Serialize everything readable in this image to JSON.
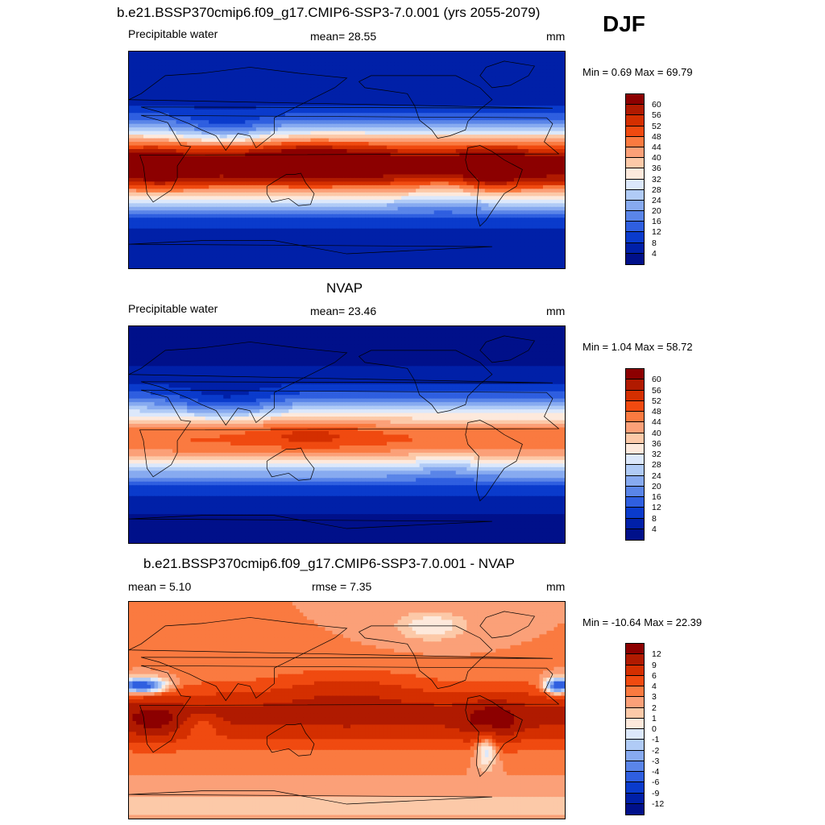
{
  "season": "DJF",
  "panels": [
    {
      "title": "b.e21.BSSP370cmip6.f09_g17.CMIP6-SSP3-7.0.001 (yrs 2055-2079)",
      "left_label": "Precipitable water",
      "center_label": "mean=  28.55",
      "units": "mm",
      "minmax": "Min =   0.69 Max =  69.79",
      "palette": "abs",
      "field": "model",
      "colorbar_labels": [
        "60",
        "56",
        "52",
        "48",
        "44",
        "40",
        "36",
        "32",
        "28",
        "24",
        "20",
        "16",
        "12",
        "8",
        "4"
      ]
    },
    {
      "title": "NVAP",
      "left_label": "Precipitable water",
      "center_label": "mean=  23.46",
      "units": "mm",
      "minmax": "Min =   1.04 Max =  58.72",
      "palette": "abs",
      "field": "obs",
      "colorbar_labels": [
        "60",
        "56",
        "52",
        "48",
        "44",
        "40",
        "36",
        "32",
        "28",
        "24",
        "20",
        "16",
        "12",
        "8",
        "4"
      ]
    },
    {
      "title": "b.e21.BSSP370cmip6.f09_g17.CMIP6-SSP3-7.0.001 - NVAP",
      "left_label": "mean =   5.10",
      "center_label": "rmse =   7.35",
      "units": "mm",
      "minmax": "Min = -10.64 Max =  22.39",
      "palette": "diff",
      "field": "diff",
      "colorbar_labels": [
        "12",
        "9",
        "6",
        "4",
        "3",
        "2",
        "1",
        "0",
        "-1",
        "-2",
        "-3",
        "-4",
        "-6",
        "-9",
        "-12"
      ]
    }
  ],
  "colors": {
    "abs": [
      "#8c0000",
      "#b01a00",
      "#d42f00",
      "#f04a10",
      "#fa7a40",
      "#fba078",
      "#fcc9a8",
      "#fde9dc",
      "#dce8fb",
      "#b0cbf6",
      "#87aaf0",
      "#5a85e8",
      "#2f5fe0",
      "#0a3bcc",
      "#0020a8",
      "#00108a"
    ],
    "diff": [
      "#8c0000",
      "#b01a00",
      "#d42f00",
      "#f04a10",
      "#fa7a40",
      "#fba078",
      "#fcc9a8",
      "#fde9dc",
      "#dce8fb",
      "#b0cbf6",
      "#87aaf0",
      "#5a85e8",
      "#2f5fe0",
      "#0a3bcc",
      "#0020a8",
      "#00108a"
    ]
  }
}
